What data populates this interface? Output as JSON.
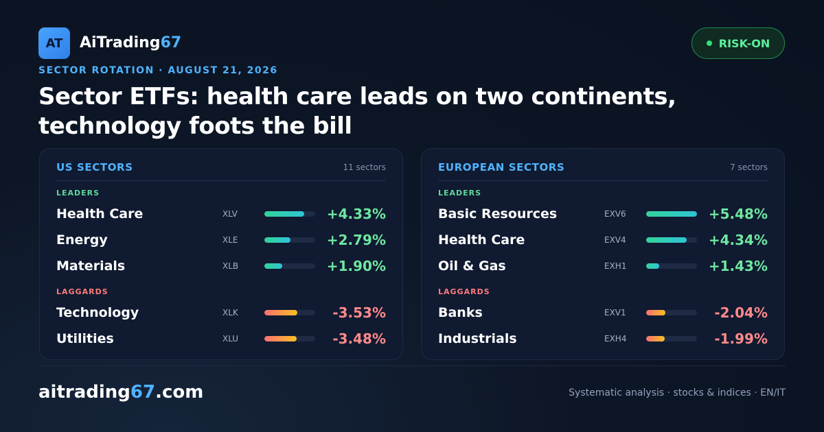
{
  "brand": {
    "logo_text": "AT",
    "name_main": "AiTrading",
    "name_accent": "67",
    "accent_color": "#4fb3ff"
  },
  "badge": {
    "label": "RISK-ON",
    "color": "#5df09b"
  },
  "kicker": "SECTOR ROTATION · AUGUST 21, 2026",
  "headline_line1": "Sector ETFs: health care leads on two continents,",
  "headline_line2": "technology foots the bill",
  "panels": [
    {
      "title": "US SECTORS",
      "count": "11 sectors",
      "leaders_label": "LEADERS",
      "laggards_label": "LAGGARDS",
      "leaders": [
        {
          "name": "Health Care",
          "ticker": "XLV",
          "change": "+4.33%",
          "value": 4.33
        },
        {
          "name": "Energy",
          "ticker": "XLE",
          "change": "+2.79%",
          "value": 2.79
        },
        {
          "name": "Materials",
          "ticker": "XLB",
          "change": "+1.90%",
          "value": 1.9
        }
      ],
      "laggards": [
        {
          "name": "Technology",
          "ticker": "XLK",
          "change": "-3.53%",
          "value": -3.53
        },
        {
          "name": "Utilities",
          "ticker": "XLU",
          "change": "-3.48%",
          "value": -3.48
        }
      ]
    },
    {
      "title": "EUROPEAN SECTORS",
      "count": "7 sectors",
      "leaders_label": "LEADERS",
      "laggards_label": "LAGGARDS",
      "leaders": [
        {
          "name": "Basic Resources",
          "ticker": "EXV6",
          "change": "+5.48%",
          "value": 5.48
        },
        {
          "name": "Health Care",
          "ticker": "EXV4",
          "change": "+4.34%",
          "value": 4.34
        },
        {
          "name": "Oil & Gas",
          "ticker": "EXH1",
          "change": "+1.43%",
          "value": 1.43
        }
      ],
      "laggards": [
        {
          "name": "Banks",
          "ticker": "EXV1",
          "change": "-2.04%",
          "value": -2.04
        },
        {
          "name": "Industrials",
          "ticker": "EXH4",
          "change": "-1.99%",
          "value": -1.99
        }
      ]
    }
  ],
  "footer": {
    "site_main": "aitrading",
    "site_accent": "67",
    "site_tld": ".com",
    "tagline": "Systematic analysis · stocks & indices · EN/IT"
  }
}
